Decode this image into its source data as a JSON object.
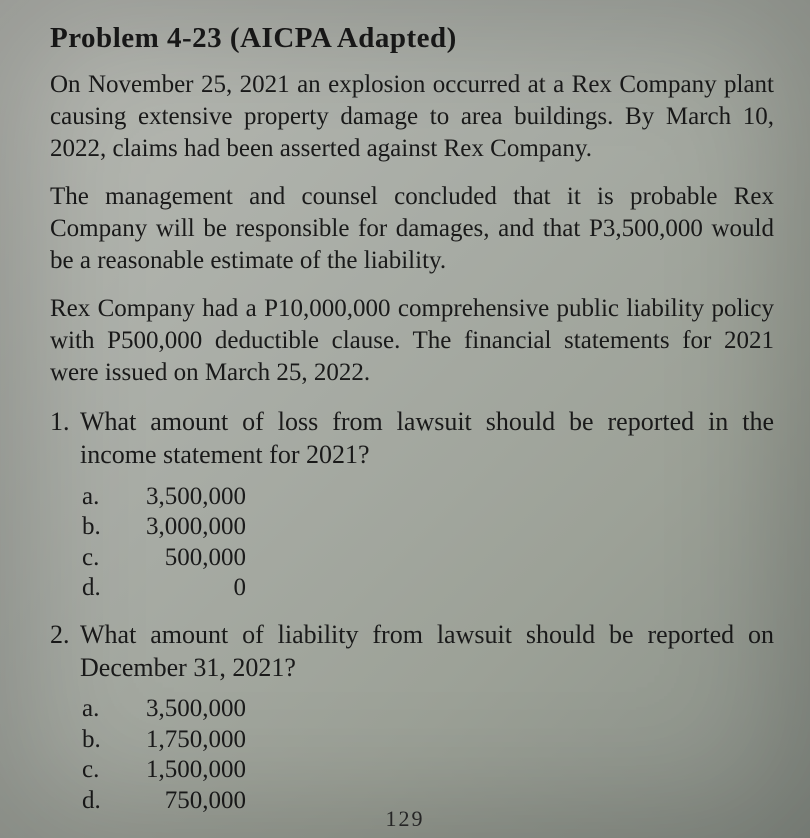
{
  "title": "Problem 4-23 (AICPA Adapted)",
  "paragraphs": [
    "On November 25, 2021 an explosion occurred at a Rex Company plant causing extensive property damage to area buildings. By March 10, 2022, claims had been asserted against Rex Company.",
    "The management and counsel concluded that it is probable Rex Company will be responsible for damages, and that P3,500,000 would be a reasonable estimate of the liability.",
    "Rex Company had a P10,000,000 comprehensive public liability policy with P500,000 deductible clause. The financial statements for 2021 were issued on March 25, 2022."
  ],
  "questions": [
    {
      "num": "1.",
      "stem": "What amount of loss from lawsuit should be reported in the income statement for 2021?",
      "choices": [
        {
          "letter": "a.",
          "value": "3,500,000"
        },
        {
          "letter": "b.",
          "value": "3,000,000"
        },
        {
          "letter": "c.",
          "value": "500,000"
        },
        {
          "letter": "d.",
          "value": "0"
        }
      ]
    },
    {
      "num": "2.",
      "stem": "What amount of liability from lawsuit should be reported on December 31, 2021?",
      "choices": [
        {
          "letter": "a.",
          "value": "3,500,000"
        },
        {
          "letter": "b.",
          "value": "1,750,000"
        },
        {
          "letter": "c.",
          "value": "1,500,000"
        },
        {
          "letter": "d.",
          "value": "750,000"
        }
      ]
    }
  ],
  "page_number": "129"
}
